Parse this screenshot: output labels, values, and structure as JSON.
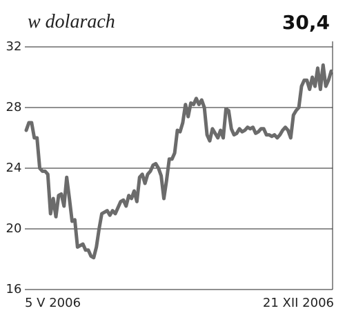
{
  "chart_data": {
    "type": "line",
    "title": "w dolarach",
    "annotation": "30,4",
    "categories": [
      "5 V 2006",
      null,
      null,
      null,
      null,
      null,
      null,
      null,
      null,
      null,
      null,
      null,
      null,
      null,
      null,
      null,
      null,
      null,
      null,
      null,
      null,
      null,
      null,
      null,
      null,
      null,
      null,
      null,
      null,
      null,
      null,
      null,
      null,
      null,
      null,
      null,
      null,
      null,
      null,
      null,
      null,
      null,
      null,
      null,
      null,
      null,
      null,
      null,
      null,
      null,
      null,
      null,
      null,
      null,
      null,
      null,
      null,
      null,
      null,
      null,
      null,
      null,
      null,
      null,
      null,
      null,
      null,
      null,
      null,
      null,
      null,
      null,
      null,
      null,
      null,
      null,
      null,
      null,
      null,
      null,
      null,
      null,
      null,
      null,
      null,
      null,
      null,
      null,
      null,
      null,
      null,
      null,
      null,
      null,
      null,
      null,
      null,
      null,
      null,
      null,
      null,
      null,
      null,
      null,
      null,
      null,
      null,
      null,
      null,
      null,
      null,
      null,
      null,
      "21 XII 2006"
    ],
    "values": [
      26.5,
      27.0,
      27.0,
      26.0,
      26.0,
      24.0,
      23.8,
      23.8,
      23.6,
      21.0,
      22.0,
      20.8,
      22.2,
      22.3,
      21.5,
      23.4,
      22.0,
      20.5,
      20.6,
      18.8,
      18.9,
      19.0,
      18.6,
      18.6,
      18.2,
      18.1,
      18.8,
      20.0,
      21.0,
      21.1,
      21.2,
      20.9,
      21.2,
      21.0,
      21.4,
      21.8,
      21.9,
      21.5,
      22.2,
      22.0,
      22.5,
      21.8,
      23.4,
      23.6,
      23.0,
      23.6,
      23.8,
      24.2,
      24.3,
      24.0,
      23.5,
      22.0,
      23.2,
      24.6,
      24.6,
      25.0,
      26.5,
      26.4,
      27.0,
      28.2,
      27.4,
      28.3,
      28.2,
      28.6,
      28.2,
      28.5,
      28.0,
      26.2,
      25.8,
      26.6,
      26.3,
      26.0,
      26.5,
      26.0,
      27.9,
      27.8,
      26.6,
      26.2,
      26.3,
      26.6,
      26.4,
      26.5,
      26.7,
      26.6,
      26.7,
      26.3,
      26.4,
      26.6,
      26.6,
      26.2,
      26.2,
      26.1,
      26.2,
      26.0,
      26.2,
      26.5,
      26.7,
      26.5,
      26.0,
      27.5,
      27.8,
      28.0,
      29.4,
      29.8,
      29.8,
      29.2,
      30.0,
      29.4,
      30.6,
      29.2,
      30.8,
      29.4,
      29.8,
      30.4
    ],
    "color": "#6b6b6b",
    "ylim": [
      16,
      32
    ],
    "yticks": [
      16,
      20,
      24,
      28,
      32
    ],
    "grid": true
  }
}
